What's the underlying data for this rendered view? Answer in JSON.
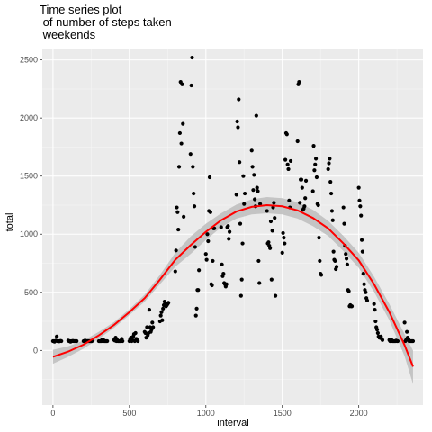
{
  "chart_data": {
    "type": "scatter",
    "title": [
      "Time series plot",
      " of number of steps taken",
      " weekends"
    ],
    "xlabel": "interval",
    "ylabel": "total",
    "xlim": [
      -70,
      2420
    ],
    "ylim": [
      -470,
      2590
    ],
    "x_ticks": [
      0,
      500,
      1000,
      1500,
      2000
    ],
    "x_tick_labels": [
      "0",
      "500",
      "1000",
      "1500",
      "2000"
    ],
    "y_ticks": [
      0,
      500,
      1000,
      1500,
      2000,
      2500
    ],
    "y_tick_labels": [
      "0",
      "500",
      "1000",
      "1500",
      "2000",
      "2500"
    ],
    "grid": true,
    "point_color": "#000000",
    "smooth_color": "#ff0000",
    "band_color": "#bdbdbd",
    "points": [
      [
        0,
        80
      ],
      [
        5,
        80
      ],
      [
        10,
        75
      ],
      [
        15,
        80
      ],
      [
        20,
        85
      ],
      [
        25,
        120
      ],
      [
        30,
        80
      ],
      [
        35,
        80
      ],
      [
        40,
        78
      ],
      [
        45,
        80
      ],
      [
        50,
        82
      ],
      [
        55,
        80
      ],
      [
        100,
        85
      ],
      [
        105,
        80
      ],
      [
        110,
        80
      ],
      [
        115,
        75
      ],
      [
        120,
        80
      ],
      [
        125,
        80
      ],
      [
        130,
        82
      ],
      [
        135,
        80
      ],
      [
        140,
        80
      ],
      [
        145,
        80
      ],
      [
        150,
        80
      ],
      [
        155,
        80
      ],
      [
        200,
        80
      ],
      [
        205,
        80
      ],
      [
        210,
        85
      ],
      [
        215,
        80
      ],
      [
        220,
        80
      ],
      [
        225,
        80
      ],
      [
        230,
        80
      ],
      [
        235,
        80
      ],
      [
        240,
        80
      ],
      [
        245,
        80
      ],
      [
        250,
        80
      ],
      [
        255,
        80
      ],
      [
        300,
        80
      ],
      [
        305,
        80
      ],
      [
        310,
        80
      ],
      [
        315,
        80
      ],
      [
        320,
        90
      ],
      [
        325,
        80
      ],
      [
        330,
        90
      ],
      [
        335,
        80
      ],
      [
        340,
        80
      ],
      [
        345,
        80
      ],
      [
        350,
        80
      ],
      [
        355,
        80
      ],
      [
        400,
        90
      ],
      [
        405,
        85
      ],
      [
        410,
        110
      ],
      [
        415,
        80
      ],
      [
        420,
        90
      ],
      [
        425,
        80
      ],
      [
        430,
        80
      ],
      [
        435,
        80
      ],
      [
        440,
        80
      ],
      [
        445,
        80
      ],
      [
        450,
        100
      ],
      [
        455,
        80
      ],
      [
        500,
        80
      ],
      [
        505,
        100
      ],
      [
        510,
        110
      ],
      [
        515,
        80
      ],
      [
        520,
        90
      ],
      [
        525,
        120
      ],
      [
        530,
        140
      ],
      [
        535,
        80
      ],
      [
        540,
        150
      ],
      [
        545,
        100
      ],
      [
        550,
        90
      ],
      [
        555,
        80
      ],
      [
        600,
        160
      ],
      [
        605,
        150
      ],
      [
        610,
        110
      ],
      [
        615,
        200
      ],
      [
        620,
        130
      ],
      [
        625,
        150
      ],
      [
        630,
        350
      ],
      [
        635,
        200
      ],
      [
        640,
        160
      ],
      [
        645,
        180
      ],
      [
        650,
        240
      ],
      [
        655,
        200
      ],
      [
        700,
        250
      ],
      [
        705,
        300
      ],
      [
        710,
        330
      ],
      [
        715,
        260
      ],
      [
        720,
        360
      ],
      [
        725,
        390
      ],
      [
        730,
        420
      ],
      [
        735,
        400
      ],
      [
        740,
        380
      ],
      [
        745,
        390
      ],
      [
        750,
        400
      ],
      [
        755,
        410
      ],
      [
        800,
        680
      ],
      [
        805,
        860
      ],
      [
        810,
        1230
      ],
      [
        815,
        1190
      ],
      [
        820,
        1040
      ],
      [
        825,
        1580
      ],
      [
        830,
        1870
      ],
      [
        835,
        2310
      ],
      [
        840,
        1780
      ],
      [
        845,
        2290
      ],
      [
        850,
        1950
      ],
      [
        855,
        1150
      ],
      [
        900,
        1690
      ],
      [
        905,
        2280
      ],
      [
        910,
        2520
      ],
      [
        915,
        1580
      ],
      [
        920,
        1350
      ],
      [
        925,
        1240
      ],
      [
        930,
        890
      ],
      [
        935,
        300
      ],
      [
        940,
        360
      ],
      [
        945,
        520
      ],
      [
        950,
        520
      ],
      [
        955,
        690
      ],
      [
        1000,
        830
      ],
      [
        1005,
        780
      ],
      [
        1010,
        1000
      ],
      [
        1015,
        940
      ],
      [
        1020,
        1200
      ],
      [
        1025,
        1490
      ],
      [
        1030,
        1190
      ],
      [
        1035,
        570
      ],
      [
        1040,
        560
      ],
      [
        1045,
        770
      ],
      [
        1050,
        1050
      ],
      [
        1055,
        1050
      ],
      [
        1100,
        1060
      ],
      [
        1105,
        740
      ],
      [
        1110,
        640
      ],
      [
        1115,
        660
      ],
      [
        1120,
        580
      ],
      [
        1125,
        570
      ],
      [
        1130,
        550
      ],
      [
        1135,
        570
      ],
      [
        1140,
        1060
      ],
      [
        1145,
        1070
      ],
      [
        1150,
        960
      ],
      [
        1155,
        1020
      ],
      [
        1200,
        1340
      ],
      [
        1205,
        1970
      ],
      [
        1210,
        1920
      ],
      [
        1215,
        2160
      ],
      [
        1220,
        1620
      ],
      [
        1225,
        1090
      ],
      [
        1230,
        470
      ],
      [
        1235,
        610
      ],
      [
        1240,
        920
      ],
      [
        1245,
        1500
      ],
      [
        1250,
        1260
      ],
      [
        1255,
        1350
      ],
      [
        1300,
        1720
      ],
      [
        1305,
        1580
      ],
      [
        1310,
        1380
      ],
      [
        1315,
        1510
      ],
      [
        1320,
        1300
      ],
      [
        1325,
        1240
      ],
      [
        1330,
        2020
      ],
      [
        1335,
        1400
      ],
      [
        1340,
        1370
      ],
      [
        1345,
        770
      ],
      [
        1350,
        580
      ],
      [
        1355,
        1260
      ],
      [
        1400,
        1200
      ],
      [
        1405,
        920
      ],
      [
        1410,
        930
      ],
      [
        1415,
        900
      ],
      [
        1420,
        880
      ],
      [
        1425,
        1110
      ],
      [
        1430,
        610
      ],
      [
        1435,
        1030
      ],
      [
        1440,
        1230
      ],
      [
        1445,
        1270
      ],
      [
        1450,
        1140
      ],
      [
        1455,
        470
      ],
      [
        1500,
        840
      ],
      [
        1505,
        1010
      ],
      [
        1510,
        970
      ],
      [
        1515,
        920
      ],
      [
        1520,
        1640
      ],
      [
        1525,
        1870
      ],
      [
        1530,
        1860
      ],
      [
        1535,
        1600
      ],
      [
        1540,
        1560
      ],
      [
        1545,
        1290
      ],
      [
        1550,
        1230
      ],
      [
        1555,
        1630
      ],
      [
        1600,
        1800
      ],
      [
        1605,
        2290
      ],
      [
        1610,
        2310
      ],
      [
        1615,
        1270
      ],
      [
        1620,
        1470
      ],
      [
        1625,
        1470
      ],
      [
        1630,
        1400
      ],
      [
        1635,
        1210
      ],
      [
        1640,
        1220
      ],
      [
        1645,
        1240
      ],
      [
        1650,
        1310
      ],
      [
        1655,
        1460
      ],
      [
        1700,
        1370
      ],
      [
        1705,
        1760
      ],
      [
        1710,
        1550
      ],
      [
        1715,
        1600
      ],
      [
        1720,
        1650
      ],
      [
        1725,
        1490
      ],
      [
        1730,
        1260
      ],
      [
        1735,
        1250
      ],
      [
        1740,
        970
      ],
      [
        1745,
        770
      ],
      [
        1750,
        660
      ],
      [
        1755,
        650
      ],
      [
        1800,
        1560
      ],
      [
        1805,
        1610
      ],
      [
        1810,
        1650
      ],
      [
        1815,
        1450
      ],
      [
        1820,
        1350
      ],
      [
        1825,
        1200
      ],
      [
        1830,
        1120
      ],
      [
        1835,
        850
      ],
      [
        1840,
        780
      ],
      [
        1845,
        770
      ],
      [
        1850,
        700
      ],
      [
        1855,
        720
      ],
      [
        1900,
        1230
      ],
      [
        1905,
        1090
      ],
      [
        1910,
        900
      ],
      [
        1915,
        830
      ],
      [
        1920,
        790
      ],
      [
        1925,
        740
      ],
      [
        1930,
        520
      ],
      [
        1935,
        510
      ],
      [
        1940,
        380
      ],
      [
        1945,
        390
      ],
      [
        1950,
        380
      ],
      [
        1955,
        380
      ],
      [
        2000,
        1400
      ],
      [
        2005,
        1290
      ],
      [
        2010,
        1240
      ],
      [
        2015,
        1160
      ],
      [
        2020,
        950
      ],
      [
        2025,
        850
      ],
      [
        2030,
        660
      ],
      [
        2035,
        570
      ],
      [
        2040,
        520
      ],
      [
        2045,
        500
      ],
      [
        2050,
        450
      ],
      [
        2055,
        430
      ],
      [
        2100,
        400
      ],
      [
        2105,
        350
      ],
      [
        2110,
        250
      ],
      [
        2115,
        200
      ],
      [
        2120,
        180
      ],
      [
        2125,
        150
      ],
      [
        2130,
        120
      ],
      [
        2135,
        110
      ],
      [
        2140,
        110
      ],
      [
        2145,
        120
      ],
      [
        2150,
        100
      ],
      [
        2155,
        90
      ],
      [
        2200,
        90
      ],
      [
        2205,
        80
      ],
      [
        2210,
        80
      ],
      [
        2215,
        90
      ],
      [
        2220,
        80
      ],
      [
        2225,
        80
      ],
      [
        2230,
        80
      ],
      [
        2235,
        80
      ],
      [
        2240,
        80
      ],
      [
        2245,
        85
      ],
      [
        2250,
        80
      ],
      [
        2255,
        80
      ],
      [
        2300,
        240
      ],
      [
        2305,
        80
      ],
      [
        2310,
        90
      ],
      [
        2315,
        160
      ],
      [
        2320,
        110
      ],
      [
        2325,
        100
      ],
      [
        2330,
        80
      ],
      [
        2335,
        80
      ],
      [
        2340,
        80
      ],
      [
        2345,
        80
      ],
      [
        2350,
        80
      ],
      [
        2355,
        80
      ]
    ],
    "smooth_line": [
      [
        0,
        -55
      ],
      [
        100,
        -10
      ],
      [
        200,
        50
      ],
      [
        300,
        130
      ],
      [
        400,
        220
      ],
      [
        500,
        330
      ],
      [
        600,
        450
      ],
      [
        700,
        610
      ],
      [
        800,
        780
      ],
      [
        900,
        905
      ],
      [
        1000,
        1020
      ],
      [
        1100,
        1120
      ],
      [
        1200,
        1195
      ],
      [
        1300,
        1235
      ],
      [
        1400,
        1250
      ],
      [
        1500,
        1240
      ],
      [
        1600,
        1205
      ],
      [
        1700,
        1140
      ],
      [
        1800,
        1050
      ],
      [
        1900,
        920
      ],
      [
        2000,
        775
      ],
      [
        2100,
        570
      ],
      [
        2200,
        330
      ],
      [
        2300,
        45
      ],
      [
        2355,
        -140
      ]
    ],
    "band_upper": [
      [
        0,
        5
      ],
      [
        100,
        35
      ],
      [
        200,
        85
      ],
      [
        300,
        160
      ],
      [
        400,
        245
      ],
      [
        500,
        355
      ],
      [
        600,
        480
      ],
      [
        700,
        650
      ],
      [
        800,
        840
      ],
      [
        900,
        980
      ],
      [
        1000,
        1090
      ],
      [
        1100,
        1180
      ],
      [
        1200,
        1255
      ],
      [
        1300,
        1300
      ],
      [
        1400,
        1320
      ],
      [
        1500,
        1310
      ],
      [
        1600,
        1275
      ],
      [
        1700,
        1210
      ],
      [
        1800,
        1115
      ],
      [
        1900,
        985
      ],
      [
        2000,
        840
      ],
      [
        2100,
        635
      ],
      [
        2200,
        400
      ],
      [
        2300,
        140
      ],
      [
        2355,
        0
      ]
    ],
    "band_lower": [
      [
        0,
        -115
      ],
      [
        100,
        -55
      ],
      [
        200,
        15
      ],
      [
        300,
        100
      ],
      [
        400,
        195
      ],
      [
        500,
        305
      ],
      [
        600,
        420
      ],
      [
        700,
        570
      ],
      [
        800,
        720
      ],
      [
        900,
        830
      ],
      [
        1000,
        950
      ],
      [
        1100,
        1060
      ],
      [
        1200,
        1135
      ],
      [
        1300,
        1170
      ],
      [
        1400,
        1180
      ],
      [
        1500,
        1170
      ],
      [
        1600,
        1135
      ],
      [
        1700,
        1070
      ],
      [
        1800,
        985
      ],
      [
        1900,
        855
      ],
      [
        2000,
        710
      ],
      [
        2100,
        505
      ],
      [
        2200,
        260
      ],
      [
        2300,
        -50
      ],
      [
        2355,
        -290
      ]
    ]
  }
}
